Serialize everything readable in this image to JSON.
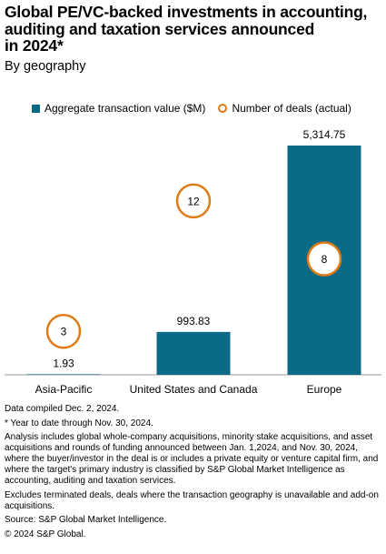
{
  "header": {
    "title_lines": [
      "Global PE/VC-backed investments in accounting,",
      "auditing and taxation services announced",
      "in 2024*"
    ],
    "subtitle": "By geography"
  },
  "legend": {
    "bar_label": "Aggregate transaction value ($M)",
    "circle_label": "Number of deals (actual)"
  },
  "colors": {
    "bar": "#0B6A85",
    "circle": "#E07B16",
    "axis": "#999999"
  },
  "chart_data": {
    "type": "bar",
    "categories": [
      "Asia-Pacific",
      "United States and Canada",
      "Europe"
    ],
    "series": [
      {
        "name": "Aggregate transaction value ($M)",
        "values": [
          1.93,
          993.83,
          5314.75
        ],
        "labels": [
          "1.93",
          "993.83",
          "5,314.75"
        ]
      },
      {
        "name": "Number of deals (actual)",
        "values": [
          3,
          12,
          8
        ],
        "labels": [
          "3",
          "12",
          "8"
        ]
      }
    ]
  },
  "notes": [
    "Data compiled Dec. 2, 2024.",
    "* Year to date through Nov. 30, 2024.",
    "Analysis includes global whole-company acquisitions, minority stake acquisitions, and asset acquisitions and rounds of funding announced between Jan. 1,2024, and Nov. 30, 2024, where the buyer/investor in the deal is or includes a private equity or venture capital firm, and where the target's primary industry is classified by S&P Global Market Intelligence as accounting, auditing and taxation services.",
    "Excludes terminated deals, deals where the transaction geography is unavailable and add-on acquisitions.",
    "Source: S&P Global Market Intelligence.",
    "© 2024 S&P Global."
  ]
}
